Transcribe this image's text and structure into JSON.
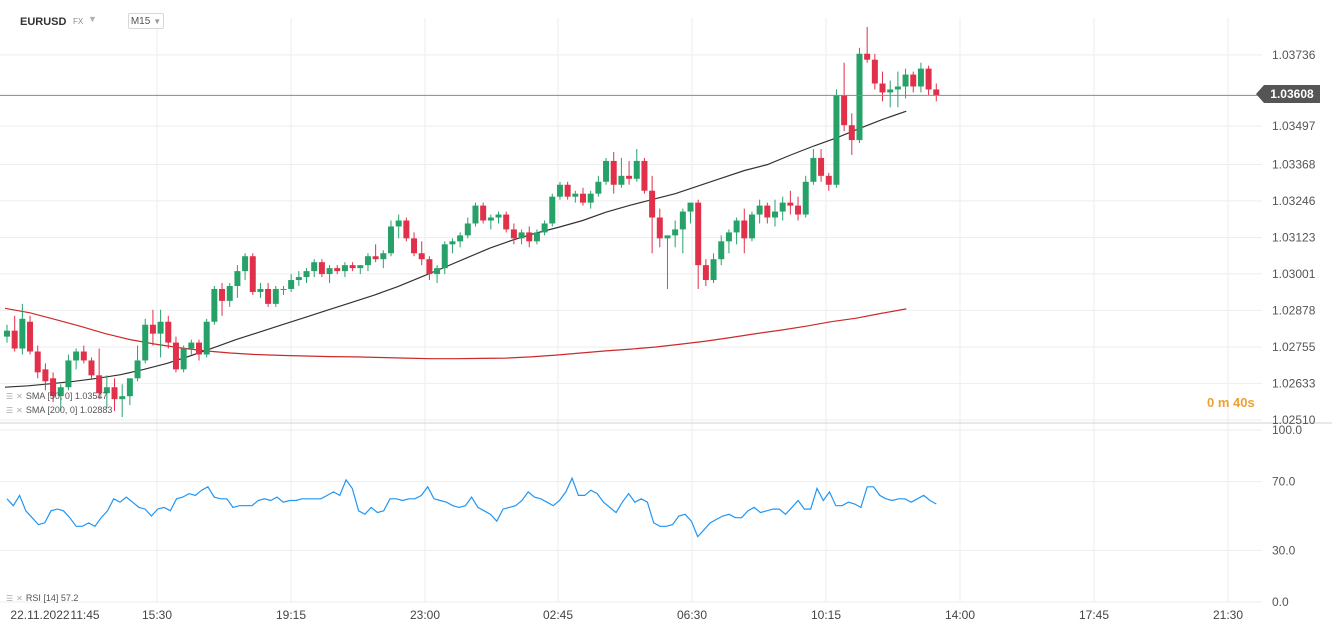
{
  "header": {
    "symbol": "EURUSD",
    "market": "FX",
    "timeframe": "M15"
  },
  "last_price_label": "1.03608",
  "countdown": "0 m 40s",
  "indicators": {
    "sma50_label": "SMA [50, 0] 1.03547",
    "sma200_label": "SMA [200, 0] 1.02883",
    "rsi_label": "RSI [14] 57.2"
  },
  "colors": {
    "bull": "#26a269",
    "bear": "#e0304a",
    "sma50": "#333333",
    "sma200": "#cc2a2a",
    "rsi": "#2196f3",
    "grid": "#eeeeee",
    "price_line": "#888888",
    "countdown": "#f0a030"
  },
  "chart_data": [
    {
      "type": "candlestick",
      "x_tick_labels": [
        "22.11.2022",
        "11:45",
        "15:30",
        "19:15",
        "23:00",
        "02:45",
        "06:30",
        "10:15",
        "14:00",
        "17:45",
        "21:30"
      ],
      "y_tick_labels": [
        "1.03736",
        "1.03497",
        "1.03368",
        "1.03246",
        "1.03123",
        "1.03001",
        "1.02878",
        "1.02755",
        "1.02633",
        "1.02510"
      ],
      "ylim": [
        1.0251,
        1.0386
      ],
      "candles": [
        [
          1.0279,
          1.0283,
          1.0277,
          1.0281
        ],
        [
          1.0281,
          1.0286,
          1.0274,
          1.0275
        ],
        [
          1.0275,
          1.029,
          1.0273,
          1.0285
        ],
        [
          1.0284,
          1.0286,
          1.0273,
          1.0274
        ],
        [
          1.0274,
          1.0276,
          1.0265,
          1.0267
        ],
        [
          1.0268,
          1.027,
          1.0261,
          1.0264
        ],
        [
          1.0265,
          1.0267,
          1.0257,
          1.0259
        ],
        [
          1.0259,
          1.0263,
          1.0254,
          1.0262
        ],
        [
          1.0262,
          1.0273,
          1.0261,
          1.0271
        ],
        [
          1.0271,
          1.0275,
          1.0268,
          1.0274
        ],
        [
          1.0274,
          1.0276,
          1.027,
          1.0271
        ],
        [
          1.0271,
          1.0272,
          1.0265,
          1.0266
        ],
        [
          1.0266,
          1.0275,
          1.0258,
          1.026
        ],
        [
          1.026,
          1.0266,
          1.0255,
          1.0262
        ],
        [
          1.0262,
          1.0265,
          1.0254,
          1.0258
        ],
        [
          1.0258,
          1.0263,
          1.0252,
          1.0259
        ],
        [
          1.0259,
          1.0265,
          1.0256,
          1.0265
        ],
        [
          1.0265,
          1.0276,
          1.0264,
          1.0271
        ],
        [
          1.0271,
          1.0285,
          1.027,
          1.0283
        ],
        [
          1.0283,
          1.0288,
          1.0276,
          1.028
        ],
        [
          1.028,
          1.0288,
          1.0272,
          1.0284
        ],
        [
          1.0284,
          1.0286,
          1.0275,
          1.0277
        ],
        [
          1.0277,
          1.0279,
          1.0267,
          1.0268
        ],
        [
          1.0268,
          1.0276,
          1.0267,
          1.0275
        ],
        [
          1.0275,
          1.0278,
          1.0273,
          1.0277
        ],
        [
          1.0277,
          1.0278,
          1.0271,
          1.0273
        ],
        [
          1.0273,
          1.0285,
          1.0272,
          1.0284
        ],
        [
          1.0284,
          1.0296,
          1.0283,
          1.0295
        ],
        [
          1.0295,
          1.0297,
          1.0286,
          1.0291
        ],
        [
          1.0291,
          1.0297,
          1.0289,
          1.0296
        ],
        [
          1.0296,
          1.0303,
          1.0292,
          1.0301
        ],
        [
          1.0301,
          1.0307,
          1.0298,
          1.0306
        ],
        [
          1.0306,
          1.0307,
          1.0293,
          1.0294
        ],
        [
          1.0294,
          1.0297,
          1.0292,
          1.0295
        ],
        [
          1.0295,
          1.0297,
          1.0289,
          1.029
        ],
        [
          1.029,
          1.0296,
          1.0289,
          1.0295
        ],
        [
          1.0295,
          1.0296,
          1.0293,
          1.0295
        ],
        [
          1.0295,
          1.03,
          1.0294,
          1.0298
        ],
        [
          1.0298,
          1.0301,
          1.0296,
          1.0299
        ],
        [
          1.0299,
          1.0302,
          1.0297,
          1.0301
        ],
        [
          1.0301,
          1.0305,
          1.0299,
          1.0304
        ],
        [
          1.0304,
          1.0305,
          1.0299,
          1.03
        ],
        [
          1.03,
          1.0303,
          1.0297,
          1.0302
        ],
        [
          1.0302,
          1.0303,
          1.03,
          1.0301
        ],
        [
          1.0301,
          1.0304,
          1.0299,
          1.0303
        ],
        [
          1.0303,
          1.0304,
          1.0301,
          1.0302
        ],
        [
          1.0302,
          1.0303,
          1.03,
          1.0303
        ],
        [
          1.0303,
          1.0307,
          1.0301,
          1.0306
        ],
        [
          1.0306,
          1.031,
          1.0304,
          1.0305
        ],
        [
          1.0305,
          1.0308,
          1.0302,
          1.0307
        ],
        [
          1.0307,
          1.0318,
          1.0306,
          1.0316
        ],
        [
          1.0316,
          1.032,
          1.0312,
          1.0318
        ],
        [
          1.0318,
          1.0319,
          1.0311,
          1.0312
        ],
        [
          1.0312,
          1.0314,
          1.0306,
          1.0307
        ],
        [
          1.0307,
          1.0311,
          1.0303,
          1.0305
        ],
        [
          1.0305,
          1.0306,
          1.0298,
          1.03
        ],
        [
          1.03,
          1.0303,
          1.0297,
          1.0302
        ],
        [
          1.0302,
          1.0311,
          1.03,
          1.031
        ],
        [
          1.031,
          1.0312,
          1.0307,
          1.0311
        ],
        [
          1.0311,
          1.0314,
          1.0309,
          1.0313
        ],
        [
          1.0313,
          1.0319,
          1.0312,
          1.0317
        ],
        [
          1.0317,
          1.0324,
          1.0316,
          1.0323
        ],
        [
          1.0323,
          1.0324,
          1.0317,
          1.0318
        ],
        [
          1.0318,
          1.032,
          1.0315,
          1.0319
        ],
        [
          1.0319,
          1.0321,
          1.0317,
          1.032
        ],
        [
          1.032,
          1.0321,
          1.0314,
          1.0315
        ],
        [
          1.0315,
          1.0317,
          1.031,
          1.0312
        ],
        [
          1.0312,
          1.0315,
          1.031,
          1.0314
        ],
        [
          1.0314,
          1.0316,
          1.0309,
          1.0311
        ],
        [
          1.0311,
          1.0315,
          1.031,
          1.0314
        ],
        [
          1.0314,
          1.0318,
          1.0313,
          1.0317
        ],
        [
          1.0317,
          1.0327,
          1.0316,
          1.0326
        ],
        [
          1.0326,
          1.0331,
          1.0325,
          1.033
        ],
        [
          1.033,
          1.0331,
          1.0325,
          1.0326
        ],
        [
          1.0326,
          1.0328,
          1.0324,
          1.0327
        ],
        [
          1.0327,
          1.0329,
          1.0323,
          1.0324
        ],
        [
          1.0324,
          1.0328,
          1.0322,
          1.0327
        ],
        [
          1.0327,
          1.0333,
          1.0326,
          1.0331
        ],
        [
          1.0331,
          1.0339,
          1.033,
          1.0338
        ],
        [
          1.0338,
          1.0341,
          1.0327,
          1.033
        ],
        [
          1.033,
          1.0339,
          1.0329,
          1.0333
        ],
        [
          1.0333,
          1.0338,
          1.033,
          1.0332
        ],
        [
          1.0332,
          1.0342,
          1.0331,
          1.0338
        ],
        [
          1.0338,
          1.0339,
          1.0327,
          1.0328
        ],
        [
          1.0328,
          1.0333,
          1.0307,
          1.0319
        ],
        [
          1.0319,
          1.0322,
          1.0309,
          1.0312
        ],
        [
          1.0312,
          1.0313,
          1.0295,
          1.0313
        ],
        [
          1.0313,
          1.0318,
          1.0309,
          1.0315
        ],
        [
          1.0315,
          1.0322,
          1.0307,
          1.0321
        ],
        [
          1.0321,
          1.0324,
          1.0317,
          1.0324
        ],
        [
          1.0324,
          1.0325,
          1.0295,
          1.0303
        ],
        [
          1.0303,
          1.0305,
          1.0296,
          1.0298
        ],
        [
          1.0298,
          1.0307,
          1.0297,
          1.0305
        ],
        [
          1.0305,
          1.0313,
          1.0303,
          1.0311
        ],
        [
          1.0311,
          1.0315,
          1.0307,
          1.0314
        ],
        [
          1.0314,
          1.0319,
          1.031,
          1.0318
        ],
        [
          1.0318,
          1.0322,
          1.0307,
          1.0312
        ],
        [
          1.0312,
          1.0321,
          1.0311,
          1.032
        ],
        [
          1.032,
          1.0325,
          1.0317,
          1.0323
        ],
        [
          1.0323,
          1.0324,
          1.0317,
          1.0319
        ],
        [
          1.0319,
          1.0325,
          1.0316,
          1.0321
        ],
        [
          1.0321,
          1.0326,
          1.0318,
          1.0324
        ],
        [
          1.0324,
          1.0328,
          1.032,
          1.0323
        ],
        [
          1.0323,
          1.0326,
          1.0318,
          1.032
        ],
        [
          1.032,
          1.0333,
          1.0319,
          1.0331
        ],
        [
          1.0331,
          1.0342,
          1.033,
          1.0339
        ],
        [
          1.0339,
          1.0342,
          1.0331,
          1.0333
        ],
        [
          1.0333,
          1.0334,
          1.0328,
          1.033
        ],
        [
          1.033,
          1.0362,
          1.0329,
          1.036
        ],
        [
          1.036,
          1.0371,
          1.0348,
          1.035
        ],
        [
          1.035,
          1.0354,
          1.034,
          1.0345
        ],
        [
          1.0345,
          1.0376,
          1.0344,
          1.0374
        ],
        [
          1.0374,
          1.0383,
          1.0371,
          1.0372
        ],
        [
          1.0372,
          1.0374,
          1.0362,
          1.0364
        ],
        [
          1.0364,
          1.0368,
          1.0358,
          1.0361
        ],
        [
          1.0361,
          1.0365,
          1.0356,
          1.0362
        ],
        [
          1.0362,
          1.0368,
          1.0356,
          1.0363
        ],
        [
          1.0363,
          1.0369,
          1.0359,
          1.0367
        ],
        [
          1.0367,
          1.0368,
          1.0361,
          1.0363
        ],
        [
          1.0363,
          1.0371,
          1.0361,
          1.0369
        ],
        [
          1.0369,
          1.037,
          1.036,
          1.0362
        ],
        [
          1.0362,
          1.0364,
          1.0358,
          1.036
        ]
      ],
      "sma50": [
        1.0262,
        1.02625,
        1.02632,
        1.0264,
        1.0265,
        1.02662,
        1.0268,
        1.027,
        1.02725,
        1.02752,
        1.0278,
        1.02805,
        1.0283,
        1.02855,
        1.0288,
        1.02905,
        1.0293,
        1.02958,
        1.0299,
        1.03022,
        1.03055,
        1.03088,
        1.03115,
        1.03138,
        1.03158,
        1.0318,
        1.03208,
        1.0323,
        1.0325,
        1.0327,
        1.03296,
        1.03322,
        1.03348,
        1.03368,
        1.034,
        1.0343,
        1.03458,
        1.0349,
        1.0352,
        1.03547
      ],
      "sma200": [
        1.02885,
        1.0287,
        1.02848,
        1.02825,
        1.028,
        1.0278,
        1.02765,
        1.02752,
        1.02742,
        1.02735,
        1.0273,
        1.02727,
        1.02725,
        1.02723,
        1.02722,
        1.0272,
        1.02718,
        1.02716,
        1.02716,
        1.02717,
        1.02718,
        1.02722,
        1.02728,
        1.02735,
        1.02742,
        1.02748,
        1.02755,
        1.02765,
        1.02775,
        1.02787,
        1.028,
        1.02812,
        1.02825,
        1.0284,
        1.02852,
        1.02868,
        1.02883
      ],
      "rsi": {
        "y_tick_labels": [
          "100.0",
          "70.0",
          "30.0",
          "0.0"
        ],
        "ylim": [
          0,
          100
        ],
        "values": [
          60,
          56,
          62,
          53,
          49,
          45,
          46,
          53,
          54,
          53,
          49,
          44,
          44,
          46,
          44,
          49,
          53,
          60,
          58,
          61,
          58,
          55,
          54,
          50,
          54,
          55,
          53,
          60,
          61,
          63,
          62,
          65,
          67,
          61,
          60,
          60,
          55,
          56,
          56,
          56,
          59,
          60,
          59,
          61,
          58,
          59,
          59,
          60,
          60,
          60,
          60,
          62,
          64,
          62,
          71,
          66,
          53,
          51,
          55,
          52,
          53,
          60,
          60,
          59,
          60,
          60,
          62,
          67,
          60,
          59,
          58,
          56,
          55,
          56,
          61,
          55,
          53,
          51,
          47,
          54,
          55,
          56,
          59,
          64,
          61,
          60,
          58,
          56,
          59,
          64,
          72,
          62,
          62,
          65,
          63,
          58,
          55,
          52,
          58,
          63,
          58,
          60,
          58,
          46,
          44,
          44,
          45,
          50,
          51,
          47,
          38,
          42,
          46,
          48,
          50,
          51,
          49,
          49,
          53,
          55,
          52,
          53,
          54,
          54,
          51,
          55,
          59,
          54,
          54,
          66,
          59,
          64,
          56,
          56,
          58,
          57,
          55,
          67,
          67,
          62,
          60,
          59,
          60,
          60,
          58,
          60,
          62,
          59,
          57
        ]
      }
    }
  ]
}
